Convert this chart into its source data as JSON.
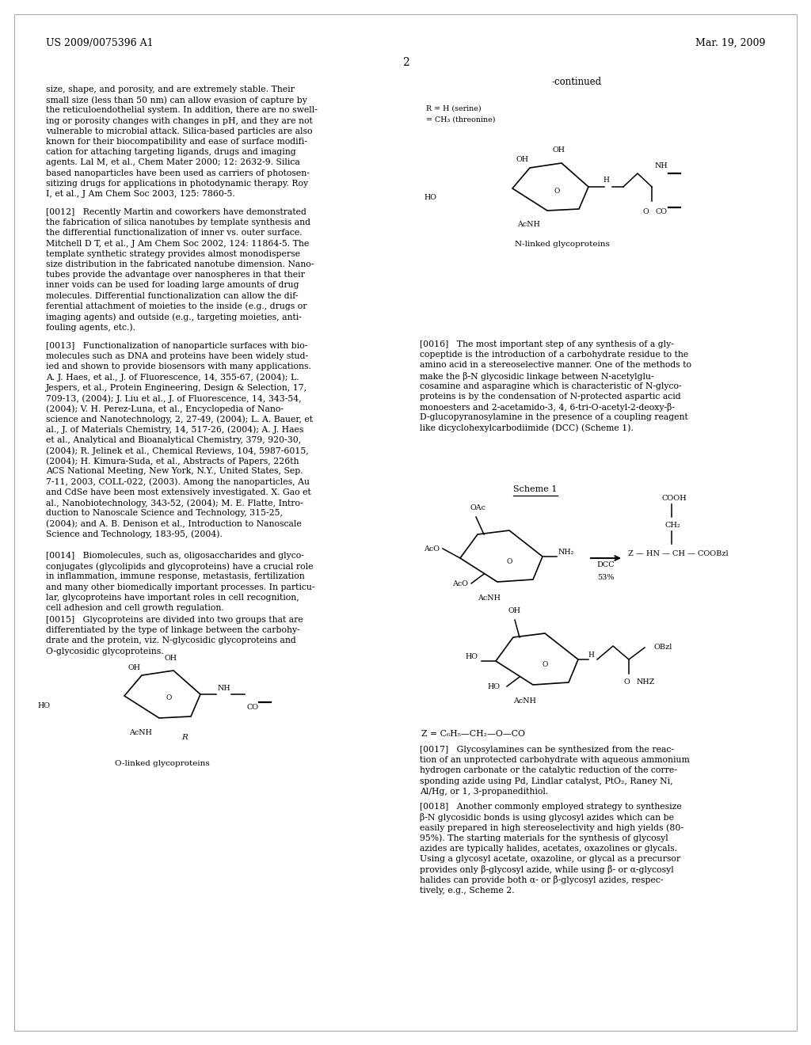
{
  "bg": "#ffffff",
  "header_left": "US 2009/0075396 A1",
  "header_right": "Mar. 19, 2009",
  "page_num": "2",
  "continued": "-continued",
  "r1": "R = H (serine)",
  "r2": "= CH₃ (threonine)",
  "n_linked": "N-linked glycoproteins",
  "o_linked": "O-linked glycoproteins",
  "scheme1": "Scheme 1",
  "z_formula": "Z = C₆H₅—CH₂—O—CO",
  "lc1": [
    "size, shape, and porosity, and are extremely stable. Their",
    "small size (less than 50 nm) can allow evasion of capture by",
    "the reticuloendothelial system. In addition, there are no swell-",
    "ing or porosity changes with changes in pH, and they are not",
    "vulnerable to microbial attack. Silica-based particles are also",
    "known for their biocompatibility and ease of surface modifi-",
    "cation for attaching targeting ligands, drugs and imaging",
    "agents. Lal M, et al., Chem Mater 2000; 12: 2632-9. Silica",
    "based nanoparticles have been used as carriers of photosen-",
    "sitizing drugs for applications in photodynamic therapy. Roy",
    "I, et al., J Am Chem Soc 2003, 125: 7860-5."
  ],
  "p0012": [
    "[0012]   Recently Martin and coworkers have demonstrated",
    "the fabrication of silica nanotubes by template synthesis and",
    "the differential functionalization of inner vs. outer surface.",
    "Mitchell D T, et al., J Am Chem Soc 2002, 124: 11864-5. The",
    "template synthetic strategy provides almost monodisperse",
    "size distribution in the fabricated nanotube dimension. Nano-",
    "tubes provide the advantage over nanospheres in that their",
    "inner voids can be used for loading large amounts of drug",
    "molecules. Differential functionalization can allow the dif-",
    "ferential attachment of moieties to the inside (e.g., drugs or",
    "imaging agents) and outside (e.g., targeting moieties, anti-",
    "fouling agents, etc.)."
  ],
  "p0013": [
    "[0013]   Functionalization of nanoparticle surfaces with bio-",
    "molecules such as DNA and proteins have been widely stud-",
    "ied and shown to provide biosensors with many applications.",
    "A. J. Haes, et al., J. of Fluorescence, 14, 355-67, (2004); L.",
    "Jespers, et al., Protein Engineering, Design & Selection, 17,",
    "709-13, (2004); J. Liu et al., J. of Fluorescence, 14, 343-54,",
    "(2004); V. H. Perez-Luna, et al., Encyclopedia of Nano-",
    "science and Nanotechnology, 2, 27-49, (2004); L. A. Bauer, et",
    "al., J. of Materials Chemistry, 14, 517-26, (2004); A. J. Haes",
    "et al., Analytical and Bioanalytical Chemistry, 379, 920-30,",
    "(2004); R. Jelinek et al., Chemical Reviews, 104, 5987-6015,",
    "(2004); H. Kimura-Suda, et al., Abstracts of Papers, 226th",
    "ACS National Meeting, New York, N.Y., United States, Sep.",
    "7-11, 2003, COLL-022, (2003). Among the nanoparticles, Au",
    "and CdSe have been most extensively investigated. X. Gao et",
    "al., Nanobiotechnology, 343-52, (2004); M. E. Flatte, Intro-",
    "duction to Nanoscale Science and Technology, 315-25,",
    "(2004); and A. B. Denison et al., Introduction to Nanoscale",
    "Science and Technology, 183-95, (2004)."
  ],
  "p0014": [
    "[0014]   Biomolecules, such as, oligosaccharides and glyco-",
    "conjugates (glycolipids and glycoproteins) have a crucial role",
    "in inflammation, immune response, metastasis, fertilization",
    "and many other biomedically important processes. In particu-",
    "lar, glycoproteins have important roles in cell recognition,",
    "cell adhesion and cell growth regulation."
  ],
  "p0015": [
    "[0015]   Glycoproteins are divided into two groups that are",
    "differentiated by the type of linkage between the carbohy-",
    "drate and the protein, viz. N-glycosidic glycoproteins and",
    "O-glycosidic glycoproteins."
  ],
  "p0016": [
    "[0016]   The most important step of any synthesis of a gly-",
    "copeptide is the introduction of a carbohydrate residue to the",
    "amino acid in a stereoselective manner. One of the methods to",
    "make the β-N glycosidic linkage between N-acetylglu-",
    "cosamine and asparagine which is characteristic of N-glyco-",
    "proteins is by the condensation of N-protected aspartic acid",
    "monoesters and 2-acetamido-3, 4, 6-tri-O-acetyl-2-deoxy-β-",
    "D-glucopyranosylamine in the presence of a coupling reagent",
    "like dicyclohexylcarbodiimide (DCC) (Scheme 1)."
  ],
  "p0017": [
    "[0017]   Glycosylamines can be synthesized from the reac-",
    "tion of an unprotected carbohydrate with aqueous ammonium",
    "hydrogen carbonate or the catalytic reduction of the corre-",
    "sponding azide using Pd, Lindlar catalyst, PtO₂, Raney Ni,",
    "Al/Hg, or 1, 3-propanedithiol."
  ],
  "p0018": [
    "[0018]   Another commonly employed strategy to synthesize",
    "β-N glycosidic bonds is using glycosyl azides which can be",
    "easily prepared in high stereoselectivity and high yields (80-",
    "95%). The starting materials for the synthesis of glycosyl",
    "azides are typically halides, acetates, oxazolines or glycals.",
    "Using a glycosyl acetate, oxazoline, or glycal as a precursor",
    "provides only β-glycosyl azide, while using β- or α-glycosyl",
    "halides can provide both α- or β-glycosyl azides, respec-",
    "tively, e.g., Scheme 2."
  ]
}
